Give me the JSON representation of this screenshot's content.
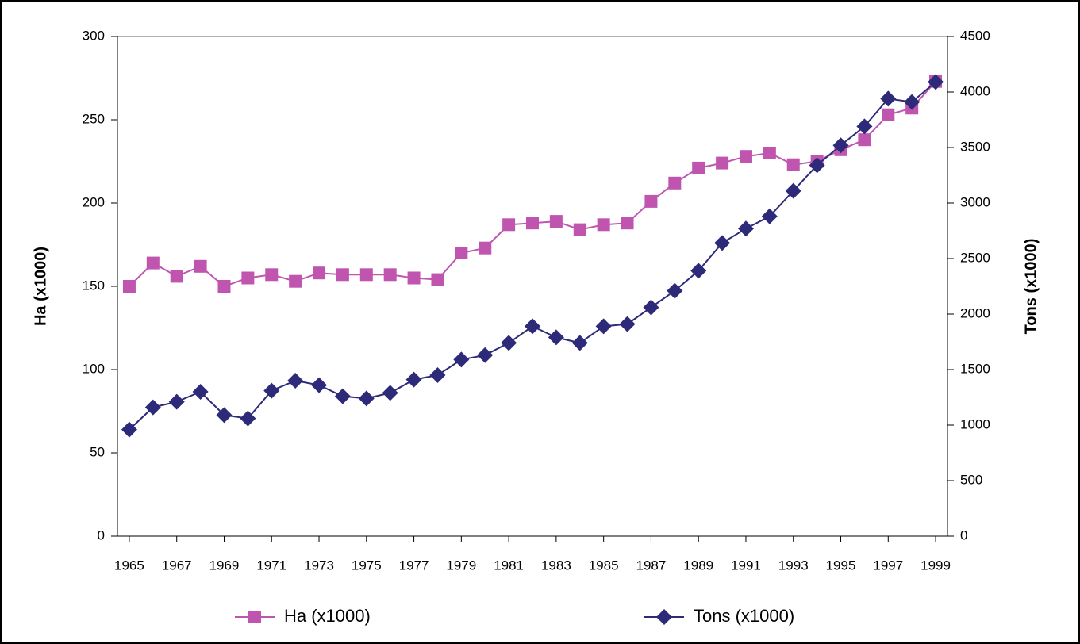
{
  "chart_data": {
    "type": "line",
    "x": [
      1965,
      1966,
      1967,
      1968,
      1969,
      1970,
      1971,
      1972,
      1973,
      1974,
      1975,
      1976,
      1977,
      1978,
      1979,
      1980,
      1981,
      1982,
      1983,
      1984,
      1985,
      1986,
      1987,
      1988,
      1989,
      1990,
      1991,
      1992,
      1993,
      1994,
      1995,
      1996,
      1997,
      1998,
      1999
    ],
    "xlim": [
      1964.5,
      1999.5
    ],
    "xticks": [
      1965,
      1967,
      1969,
      1971,
      1973,
      1975,
      1977,
      1979,
      1981,
      1983,
      1985,
      1987,
      1989,
      1991,
      1993,
      1995,
      1997,
      1999
    ],
    "ylim": [
      0,
      300
    ],
    "yticks": [
      0,
      50,
      100,
      150,
      200,
      250,
      300
    ],
    "y2lim": [
      0,
      4500
    ],
    "y2ticks": [
      0,
      500,
      1000,
      1500,
      2000,
      2500,
      3000,
      3500,
      4000,
      4500
    ],
    "ylabel": "Ha (x1000)",
    "y2label": "Tons (x1000)",
    "grid": false,
    "series": [
      {
        "name": "Ha (x1000)",
        "color": "#c055b0",
        "marker": "square",
        "values": [
          150,
          164,
          156,
          162,
          150,
          155,
          157,
          153,
          158,
          157,
          157,
          157,
          155,
          154,
          170,
          173,
          187,
          188,
          189,
          184,
          187,
          188,
          201,
          212,
          221,
          224,
          228,
          230,
          223,
          225,
          232,
          238,
          253,
          257,
          273
        ]
      },
      {
        "name": "Tons (x1000)",
        "color": "#2e2a7a",
        "marker": "diamond",
        "axis": "y2",
        "values": [
          960,
          1160,
          1210,
          1300,
          1090,
          1060,
          1310,
          1400,
          1360,
          1260,
          1240,
          1290,
          1410,
          1450,
          1590,
          1630,
          1740,
          1890,
          1790,
          1740,
          1890,
          1910,
          2060,
          2210,
          2390,
          2640,
          2770,
          2880,
          3110,
          3340,
          3520,
          3690,
          3940,
          3910,
          4090
        ]
      }
    ]
  }
}
